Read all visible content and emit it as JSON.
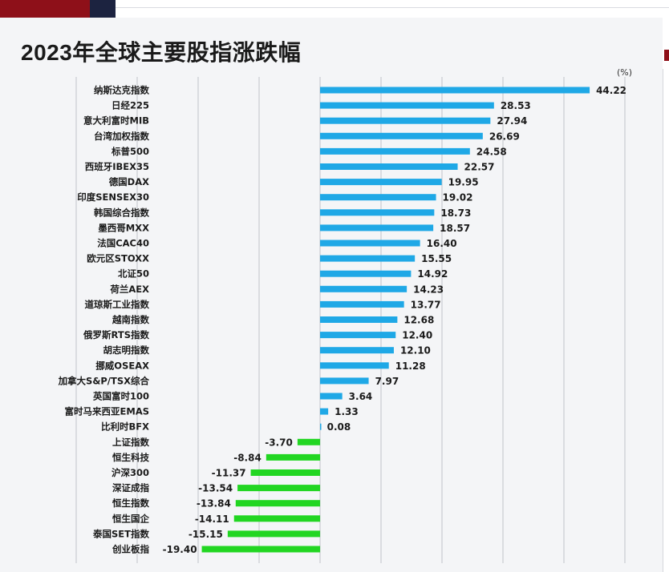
{
  "title": "2023年全球主要股指涨跌幅",
  "unit": "(%)",
  "colors": {
    "positive": "#1fa8e6",
    "negative": "#22d622",
    "grid": "#bfc3c9"
  },
  "footer_text": "",
  "chart_data": {
    "type": "bar",
    "orientation": "horizontal",
    "title": "2023年全球主要股指涨跌幅",
    "unit": "(%)",
    "xlim": [
      -40,
      50
    ],
    "grid": true,
    "categories": [
      "纳斯达克指数",
      "日经225",
      "意大利富时MIB",
      "台湾加权指数",
      "标普500",
      "西班牙IBEX35",
      "德国DAX",
      "印度SENSEX30",
      "韩国综合指数",
      "墨西哥MXX",
      "法国CAC40",
      "欧元区STOXX",
      "北证50",
      "荷兰AEX",
      "道琼斯工业指数",
      "越南指数",
      "俄罗斯RTS指数",
      "胡志明指数",
      "挪威OSEAX",
      "加拿大S&P/TSX综合",
      "英国富时100",
      "富时马来西亚EMAS",
      "比利时BFX",
      "上证指数",
      "恒生科技",
      "沪深300",
      "深证成指",
      "恒生指数",
      "恒生国企",
      "泰国SET指数",
      "创业板指"
    ],
    "values": [
      44.22,
      28.53,
      27.94,
      26.69,
      24.58,
      22.57,
      19.95,
      19.02,
      18.73,
      18.57,
      16.4,
      15.55,
      14.92,
      14.23,
      13.77,
      12.68,
      12.4,
      12.1,
      11.28,
      7.97,
      3.64,
      1.33,
      0.08,
      -3.7,
      -8.84,
      -11.37,
      -13.54,
      -13.84,
      -14.11,
      -15.15,
      -19.4
    ],
    "value_labels": [
      "44.22",
      "28.53",
      "27.94",
      "26.69",
      "24.58",
      "22.57",
      "19.95",
      "19.02",
      "18.73",
      "18.57",
      "16.40",
      "15.55",
      "14.92",
      "14.23",
      "13.77",
      "12.68",
      "12.40",
      "12.10",
      "11.28",
      "7.97",
      "3.64",
      "1.33",
      "0.08",
      "-3.70",
      "-8.84",
      "-11.37",
      "-13.54",
      "-13.84",
      "-14.11",
      "-15.15",
      "-19.40"
    ]
  }
}
